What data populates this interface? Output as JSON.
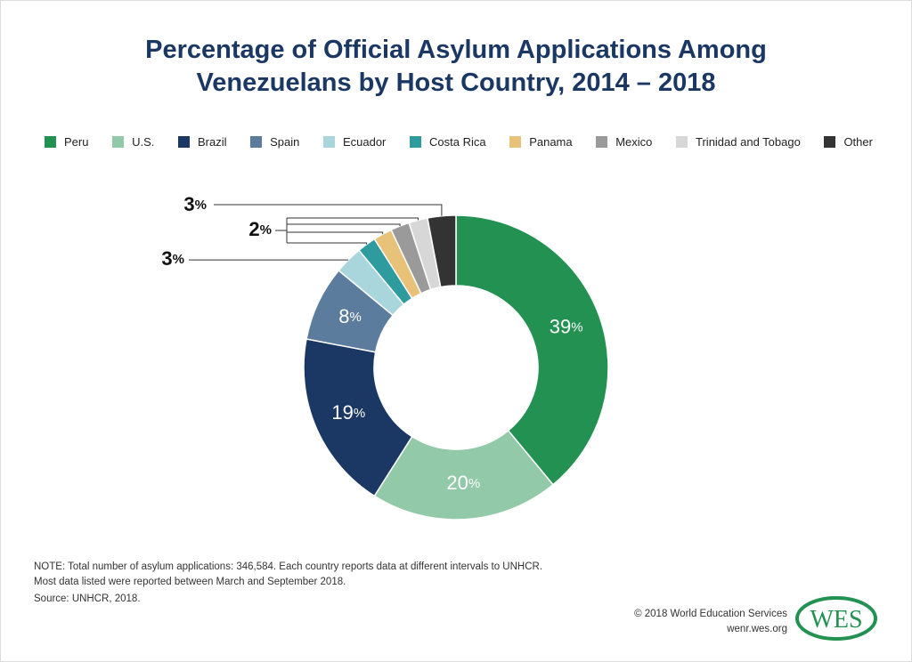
{
  "title": {
    "line1": "Percentage of Official Asylum Applications Among",
    "line2": "Venezuelans by Host Country, 2014 – 2018"
  },
  "chart_data": {
    "type": "pie",
    "title": "Percentage of Official Asylum Applications Among Venezuelans by Host Country, 2014 – 2018",
    "categories": [
      "Peru",
      "U.S.",
      "Brazil",
      "Spain",
      "Ecuador",
      "Costa Rica",
      "Panama",
      "Mexico",
      "Trinidad and Tobago",
      "Other"
    ],
    "values": [
      39,
      20,
      19,
      8,
      3,
      2,
      2,
      2,
      2,
      3
    ],
    "colors": [
      "#229152",
      "#92c9a9",
      "#1b3764",
      "#5b7c9c",
      "#a9d6dc",
      "#2e9b9e",
      "#e9c27a",
      "#9a9a9a",
      "#d7d7d7",
      "#333333"
    ],
    "labels": [
      "39",
      "20",
      "19",
      "8",
      "3",
      "2",
      "2",
      "2",
      "2",
      "3"
    ],
    "inner_labels": [
      "39",
      "20",
      "19",
      "8"
    ],
    "percent_sign": "%",
    "legend_position": "top",
    "hole": true
  },
  "note": {
    "line1": "NOTE: Total number of asylum applications: 346,584. Each country reports data at different intervals to UNHCR.",
    "line2": "Most data listed were reported between March and September 2018."
  },
  "source": "Source: UNHCR, 2018.",
  "credit": {
    "line1": "© 2018 World Education Services",
    "line2": "wenr.wes.org"
  },
  "logo": {
    "text": "WES",
    "color": "#229152"
  }
}
